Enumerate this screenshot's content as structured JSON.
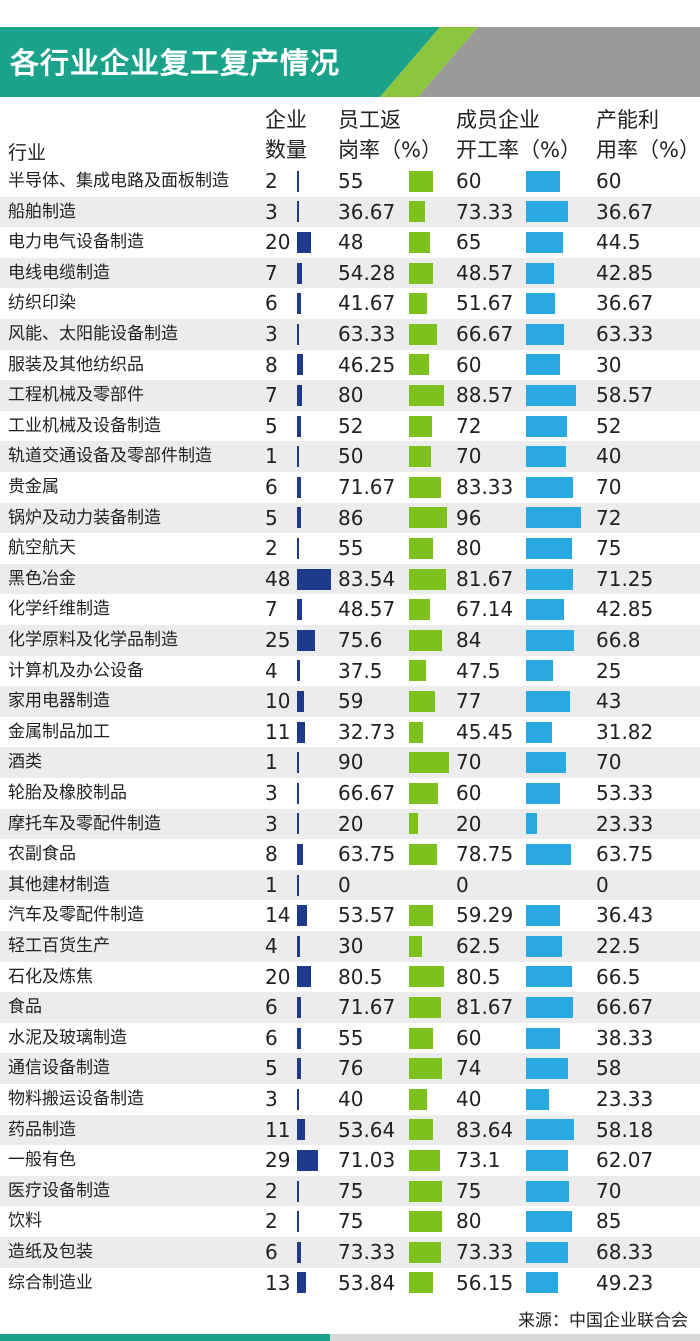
{
  "title": "各行业企业复工复产情况",
  "headers": {
    "industry": "行业",
    "count": [
      "企业",
      "数量"
    ],
    "return": [
      "员工返",
      "岗率（%）"
    ],
    "start": [
      "成员企业",
      "开工率（%）"
    ],
    "capacity": [
      "产能利",
      "用率（%）"
    ]
  },
  "source": "来源：中国企业联合会",
  "colors": {
    "banner": "#1aa38a",
    "banner_green": "#8cc63f",
    "banner_gray": "#9a9a9a",
    "count_bar": "#1f3a8a",
    "return_bar": "#7dc11f",
    "start_bar": "#29a9e1",
    "row_alt": "#ececec"
  },
  "chart_data": {
    "type": "table",
    "columns": [
      "行业",
      "企业数量",
      "员工返岗率（%）",
      "成员企业开工率（%）",
      "产能利用率（%）"
    ],
    "rows": [
      {
        "industry": "半导体、集成电路及面板制造",
        "count": 2,
        "return_rate": 55,
        "start_rate": 60,
        "capacity": 60
      },
      {
        "industry": "船舶制造",
        "count": 3,
        "return_rate": 36.67,
        "start_rate": 73.33,
        "capacity": 36.67
      },
      {
        "industry": "电力电气设备制造",
        "count": 20,
        "return_rate": 48,
        "start_rate": 65,
        "capacity": 44.5
      },
      {
        "industry": "电线电缆制造",
        "count": 7,
        "return_rate": 54.28,
        "start_rate": 48.57,
        "capacity": 42.85
      },
      {
        "industry": "纺织印染",
        "count": 6,
        "return_rate": 41.67,
        "start_rate": 51.67,
        "capacity": 36.67
      },
      {
        "industry": "风能、太阳能设备制造",
        "count": 3,
        "return_rate": 63.33,
        "start_rate": 66.67,
        "capacity": 63.33
      },
      {
        "industry": "服装及其他纺织品",
        "count": 8,
        "return_rate": 46.25,
        "start_rate": 60,
        "capacity": 30
      },
      {
        "industry": "工程机械及零部件",
        "count": 7,
        "return_rate": 80,
        "start_rate": 88.57,
        "capacity": 58.57
      },
      {
        "industry": "工业机械及设备制造",
        "count": 5,
        "return_rate": 52,
        "start_rate": 72,
        "capacity": 52
      },
      {
        "industry": "轨道交通设备及零部件制造",
        "count": 1,
        "return_rate": 50,
        "start_rate": 70,
        "capacity": 40
      },
      {
        "industry": "贵金属",
        "count": 6,
        "return_rate": 71.67,
        "start_rate": 83.33,
        "capacity": 70
      },
      {
        "industry": "锅炉及动力装备制造",
        "count": 5,
        "return_rate": 86,
        "start_rate": 96,
        "capacity": 72
      },
      {
        "industry": "航空航天",
        "count": 2,
        "return_rate": 55,
        "start_rate": 80,
        "capacity": 75
      },
      {
        "industry": "黑色冶金",
        "count": 48,
        "return_rate": 83.54,
        "start_rate": 81.67,
        "capacity": 71.25
      },
      {
        "industry": "化学纤维制造",
        "count": 7,
        "return_rate": 48.57,
        "start_rate": 67.14,
        "capacity": 42.85
      },
      {
        "industry": "化学原料及化学品制造",
        "count": 25,
        "return_rate": 75.6,
        "start_rate": 84,
        "capacity": 66.8
      },
      {
        "industry": "计算机及办公设备",
        "count": 4,
        "return_rate": 37.5,
        "start_rate": 47.5,
        "capacity": 25
      },
      {
        "industry": "家用电器制造",
        "count": 10,
        "return_rate": 59,
        "start_rate": 77,
        "capacity": 43
      },
      {
        "industry": "金属制品加工",
        "count": 11,
        "return_rate": 32.73,
        "start_rate": 45.45,
        "capacity": 31.82
      },
      {
        "industry": "酒类",
        "count": 1,
        "return_rate": 90,
        "start_rate": 70,
        "capacity": 70
      },
      {
        "industry": "轮胎及橡胶制品",
        "count": 3,
        "return_rate": 66.67,
        "start_rate": 60,
        "capacity": 53.33
      },
      {
        "industry": "摩托车及零配件制造",
        "count": 3,
        "return_rate": 20,
        "start_rate": 20,
        "capacity": 23.33
      },
      {
        "industry": "农副食品",
        "count": 8,
        "return_rate": 63.75,
        "start_rate": 78.75,
        "capacity": 63.75
      },
      {
        "industry": "其他建材制造",
        "count": 1,
        "return_rate": 0,
        "start_rate": 0,
        "capacity": 0
      },
      {
        "industry": "汽车及零配件制造",
        "count": 14,
        "return_rate": 53.57,
        "start_rate": 59.29,
        "capacity": 36.43
      },
      {
        "industry": "轻工百货生产",
        "count": 4,
        "return_rate": 30,
        "start_rate": 62.5,
        "capacity": 22.5
      },
      {
        "industry": "石化及炼焦",
        "count": 20,
        "return_rate": 80.5,
        "start_rate": 80.5,
        "capacity": 66.5
      },
      {
        "industry": "食品",
        "count": 6,
        "return_rate": 71.67,
        "start_rate": 81.67,
        "capacity": 66.67
      },
      {
        "industry": "水泥及玻璃制造",
        "count": 6,
        "return_rate": 55,
        "start_rate": 60,
        "capacity": 38.33
      },
      {
        "industry": "通信设备制造",
        "count": 5,
        "return_rate": 76,
        "start_rate": 74,
        "capacity": 58
      },
      {
        "industry": "物料搬运设备制造",
        "count": 3,
        "return_rate": 40,
        "start_rate": 40,
        "capacity": 23.33
      },
      {
        "industry": "药品制造",
        "count": 11,
        "return_rate": 53.64,
        "start_rate": 83.64,
        "capacity": 58.18
      },
      {
        "industry": "一般有色",
        "count": 29,
        "return_rate": 71.03,
        "start_rate": 73.1,
        "capacity": 62.07
      },
      {
        "industry": "医疗设备制造",
        "count": 2,
        "return_rate": 75,
        "start_rate": 75,
        "capacity": 70
      },
      {
        "industry": "饮料",
        "count": 2,
        "return_rate": 75,
        "start_rate": 80,
        "capacity": 85
      },
      {
        "industry": "造纸及包装",
        "count": 6,
        "return_rate": 73.33,
        "start_rate": 73.33,
        "capacity": 68.33
      },
      {
        "industry": "综合制造业",
        "count": 13,
        "return_rate": 53.84,
        "start_rate": 56.15,
        "capacity": 49.23
      }
    ]
  }
}
